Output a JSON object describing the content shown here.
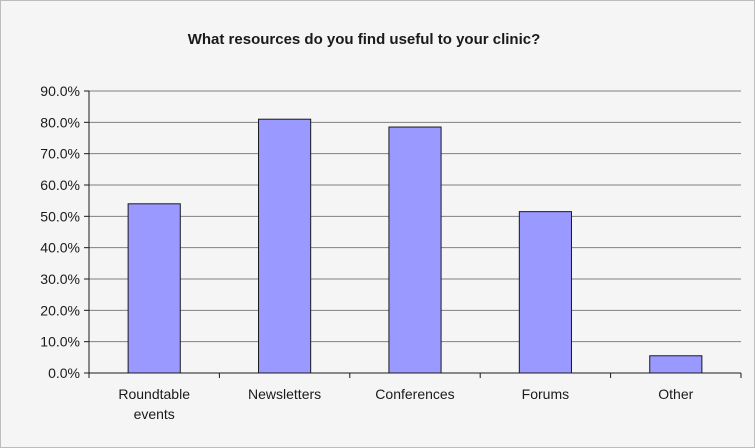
{
  "chart_data": {
    "type": "bar",
    "title": "What resources do you find useful to your clinic?",
    "categories": [
      [
        "Roundtable",
        "events"
      ],
      [
        "Newsletters"
      ],
      [
        "Conferences"
      ],
      [
        "Forums"
      ],
      [
        "Other"
      ]
    ],
    "values": [
      0.54,
      0.81,
      0.785,
      0.515,
      0.055
    ],
    "ylim": [
      0,
      0.9
    ],
    "yticks": [
      "0.0%",
      "10.0%",
      "20.0%",
      "30.0%",
      "40.0%",
      "50.0%",
      "60.0%",
      "70.0%",
      "80.0%",
      "90.0%"
    ],
    "grid": true,
    "legend": "none",
    "colors": {
      "bar_fill": "#9999ff",
      "bar_stroke": "#1a1a1a",
      "grid": "#808080",
      "background": "#f5f5f5"
    }
  }
}
